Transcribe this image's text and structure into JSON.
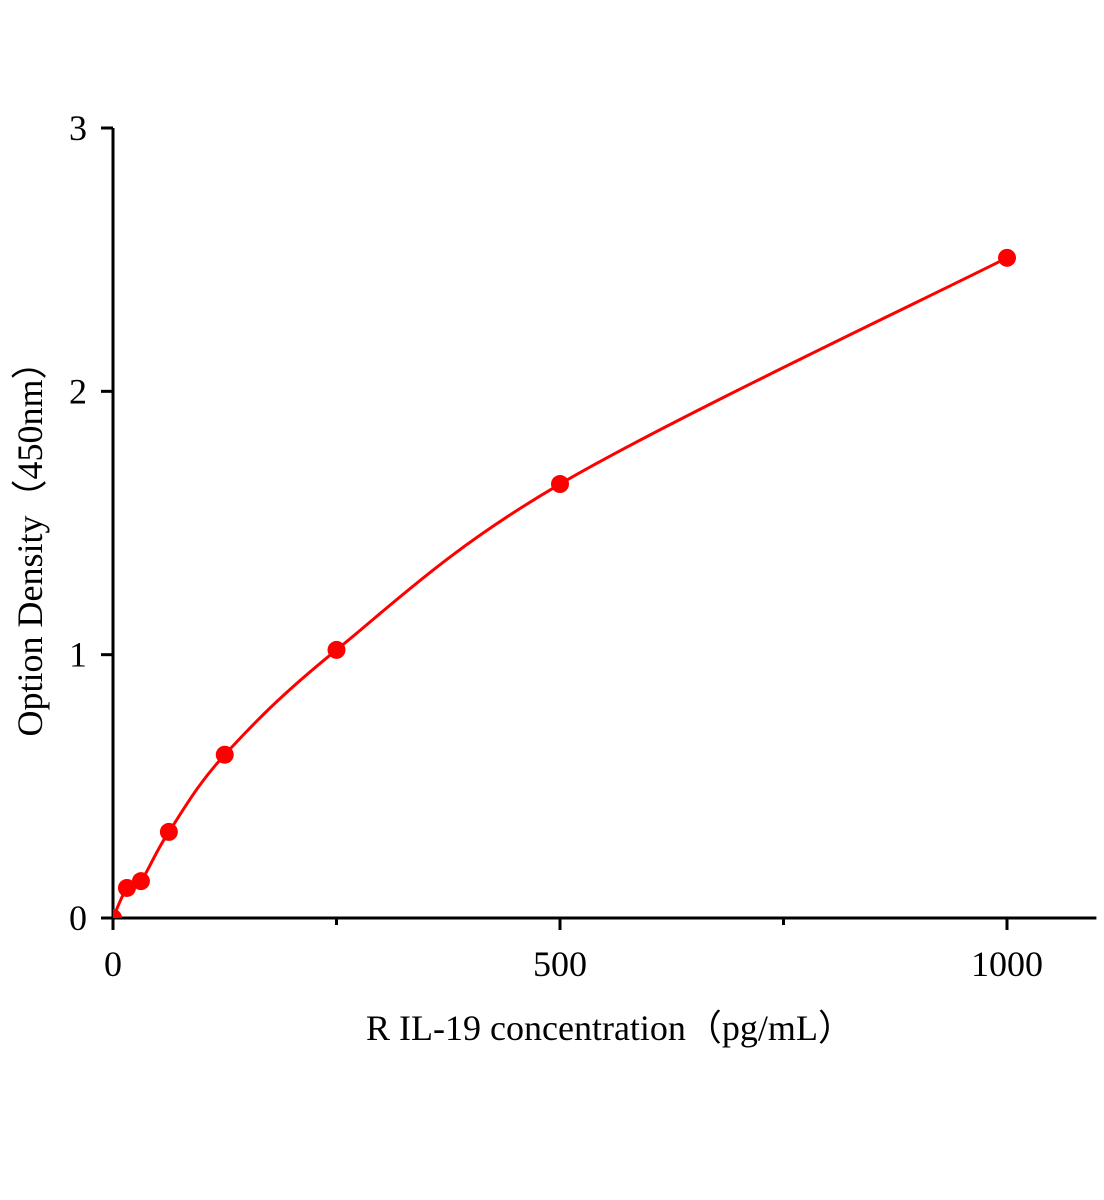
{
  "chart_data": {
    "type": "line",
    "title": "",
    "xlabel": "R IL-19 concentration（pg/mL）",
    "ylabel": "Option Density（450nm）",
    "xlim": [
      0,
      1100
    ],
    "ylim": [
      0,
      3
    ],
    "xticks": [
      0,
      500,
      1000
    ],
    "xticks_minor": [
      250,
      750
    ],
    "yticks": [
      0,
      1,
      2,
      3
    ],
    "grid": false,
    "colors": {
      "series": "#ff0000",
      "axis": "#000000"
    },
    "series": [
      {
        "x": [
          0,
          15.6,
          31.25,
          62.5,
          125,
          250,
          500,
          1000
        ],
        "y": [
          0,
          0.114,
          0.14,
          0.327,
          0.62,
          1.018,
          1.648,
          2.507
        ],
        "marker": "circle",
        "fit_curve": true
      }
    ]
  }
}
